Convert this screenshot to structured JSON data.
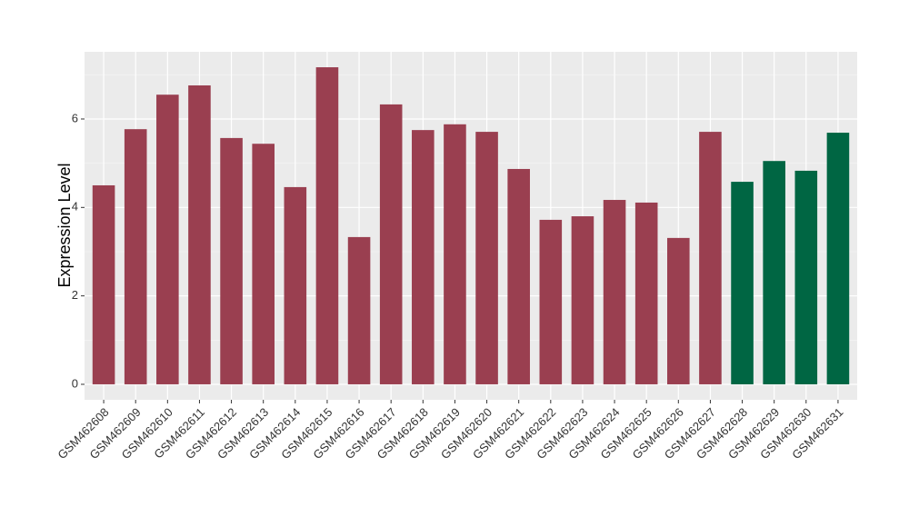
{
  "chart_data": {
    "type": "bar",
    "y_label": "Expression Level",
    "categories": [
      "GSM462608",
      "GSM462609",
      "GSM462610",
      "GSM462611",
      "GSM462612",
      "GSM462613",
      "GSM462614",
      "GSM462615",
      "GSM462616",
      "GSM462617",
      "GSM462618",
      "GSM462619",
      "GSM462620",
      "GSM462621",
      "GSM462622",
      "GSM462623",
      "GSM462624",
      "GSM462625",
      "GSM462626",
      "GSM462627",
      "GSM462628",
      "GSM462629",
      "GSM462630",
      "GSM462631"
    ],
    "values": [
      4.5,
      5.77,
      6.55,
      6.76,
      5.57,
      5.44,
      4.46,
      7.17,
      3.33,
      6.33,
      5.75,
      5.88,
      5.71,
      4.87,
      3.72,
      3.8,
      4.17,
      4.11,
      3.31,
      5.71,
      4.58,
      5.05,
      4.83,
      5.69
    ],
    "colors": [
      "#9a3f50",
      "#9a3f50",
      "#9a3f50",
      "#9a3f50",
      "#9a3f50",
      "#9a3f50",
      "#9a3f50",
      "#9a3f50",
      "#9a3f50",
      "#9a3f50",
      "#9a3f50",
      "#9a3f50",
      "#9a3f50",
      "#9a3f50",
      "#9a3f50",
      "#9a3f50",
      "#9a3f50",
      "#9a3f50",
      "#9a3f50",
      "#9a3f50",
      "#006643",
      "#006643",
      "#006643",
      "#006643"
    ],
    "ylim": [
      -0.35,
      7.52
    ],
    "yticks": [
      0,
      2,
      4,
      6
    ],
    "grid": true
  }
}
